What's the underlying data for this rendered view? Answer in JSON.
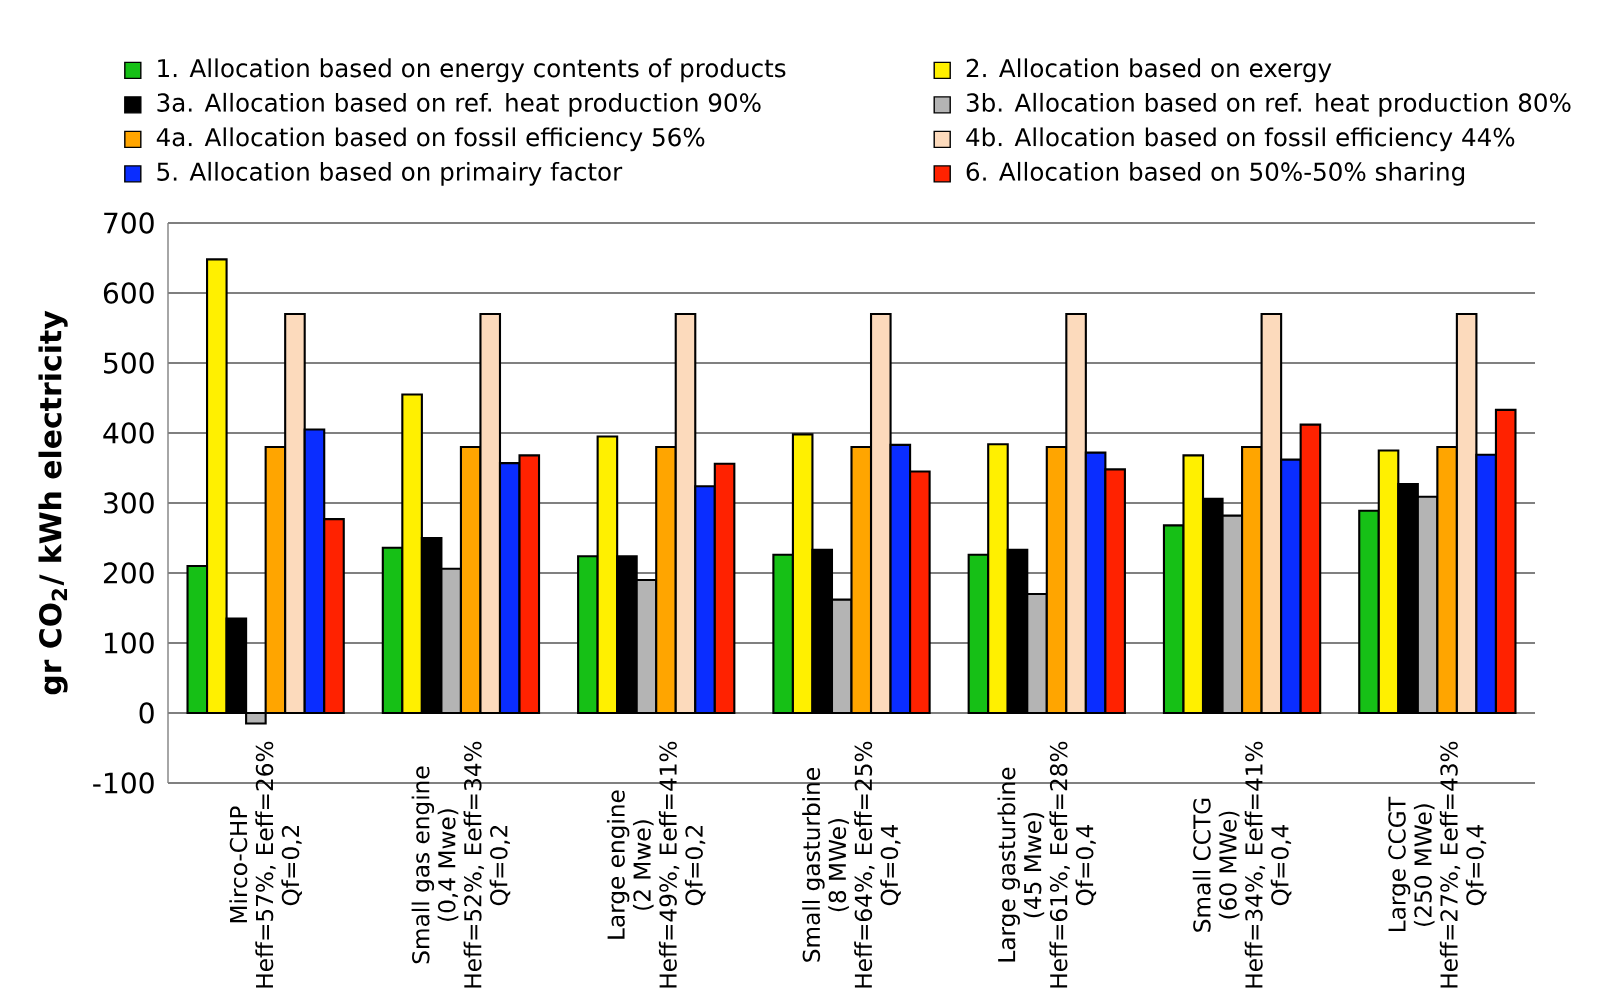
{
  "chart_data": {
    "type": "bar",
    "ylabel": "**gr CO$_{2}$/ kWh electricity**",
    "categories": [
      "Mirco-CHP\nHeff=57%, Eeff=26%\nQf=0,2",
      "Small gas engine\n(0,4 Mwe)\nHeff=52%, Eeff=34%\nQf=0,2",
      "Large engine\n(2 Mwe)\nHeff=49%, Eeff=41%\nQf=0,2",
      "Small gasturbine\n(8 MWe)\nHeff=64%, Eeff=25%\nQf=0,4",
      "Large gasturbine\n(45 Mwe)\nHeff=61%, Eeff=28%\nQf=0,4",
      "Small CCTG\n(60 MWe)\nHeff=34%, Eeff=41%\nQf=0,4",
      "Large CCGT\n(250 MWe)\nHeff=27%, Eeff=43%\nQf=0,4"
    ],
    "series": [
      {
        "name": "1.   Allocation based on energy contents of products",
        "color": "#16c016",
        "values": [
          210,
          236,
          224,
          226,
          226,
          268,
          289
        ]
      },
      {
        "name": "2.   Allocation based on exergy",
        "color": "#fff000",
        "values": [
          648,
          455,
          395,
          398,
          384,
          368,
          375
        ]
      },
      {
        "name": "3a. Allocation based on ref. heat production 90%",
        "color": "#000000",
        "values": [
          135,
          250,
          224,
          233,
          233,
          306,
          327
        ]
      },
      {
        "name": "3b. Allocation based on ref. heat production 80%",
        "color": "#b4b4b4",
        "values": [
          -15,
          206,
          190,
          162,
          170,
          282,
          309
        ]
      },
      {
        "name": "4a. Allocation based on fossil efficiency 56%",
        "color": "#ffa500",
        "values": [
          380,
          380,
          380,
          380,
          380,
          380,
          380
        ]
      },
      {
        "name": "4b. Allocation based on fossil efficiency 44%",
        "color": "#fcdabc",
        "values": [
          570,
          570,
          570,
          570,
          570,
          570,
          570
        ]
      },
      {
        "name": "5.   Allocation based on primairy factor",
        "color": "#0a2dff",
        "values": [
          405,
          357,
          324,
          383,
          372,
          362,
          369
        ]
      },
      {
        "name": "6.   Allocation based on 50%-50% sharing",
        "color": "#ff2200",
        "values": [
          277,
          368,
          356,
          345,
          348,
          412,
          433
        ]
      }
    ],
    "ylim": [
      -100,
      700
    ],
    "yticks": [
      -100,
      0,
      100,
      200,
      300,
      400,
      500,
      600,
      700
    ],
    "grid": "y",
    "legend": "top"
  }
}
